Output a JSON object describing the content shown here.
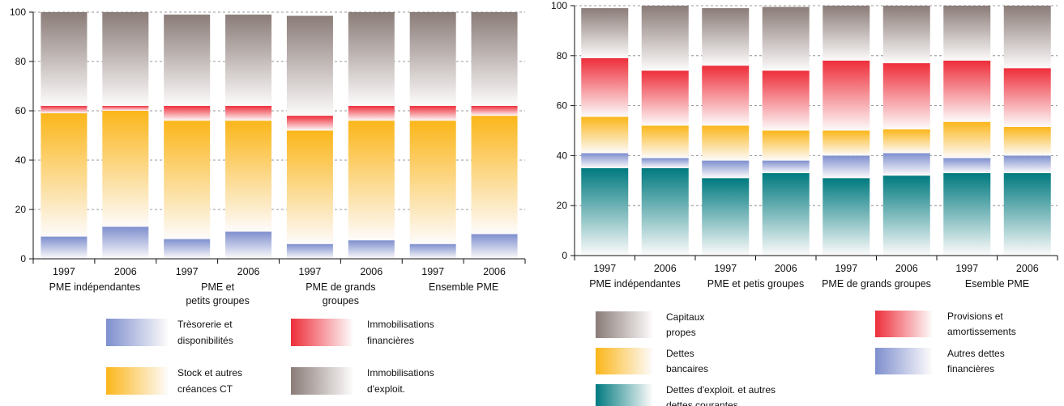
{
  "chart_data": [
    {
      "type": "bar",
      "stacked": true,
      "title": "",
      "xlabel": "",
      "ylabel": "",
      "ylim": [
        0,
        100
      ],
      "yticks": [
        0,
        20,
        40,
        60,
        80,
        100
      ],
      "grid": "horizontal dashed",
      "categories": [
        "1997",
        "2006",
        "1997",
        "2006",
        "1997",
        "2006",
        "1997",
        "2006"
      ],
      "groups": [
        {
          "label": [
            "PME indépendantes"
          ]
        },
        {
          "label": [
            "PME et",
            "petits groupes"
          ]
        },
        {
          "label": [
            "PME de grands",
            "groupes"
          ]
        },
        {
          "label": [
            "Ensemble PME"
          ]
        }
      ],
      "series": [
        {
          "name": "Trèsorerie et disponibilités",
          "color": "#7e8fce",
          "values": [
            9,
            13,
            8,
            11,
            6,
            7.5,
            6,
            10
          ]
        },
        {
          "name": "Stock et autres créances CT",
          "color": "#fbb61a",
          "values": [
            50,
            47,
            48,
            45,
            46,
            48.5,
            50,
            48
          ]
        },
        {
          "name": "Immobilisations financières",
          "color": "#ee2e3a",
          "values": [
            3,
            2,
            6,
            6,
            6,
            6,
            6,
            4
          ]
        },
        {
          "name": "Immobilisations d'exploit.",
          "color": "#8a7c78",
          "values": [
            38,
            38,
            37,
            37,
            40.5,
            38,
            38,
            38
          ]
        }
      ],
      "legend": [
        [
          "Trèsorerie et",
          "disponibilités"
        ],
        [
          "Immobilisations",
          "financières"
        ],
        [
          "Stock et autres",
          "créances CT"
        ],
        [
          "Immobilisations",
          "d'exploit."
        ]
      ]
    },
    {
      "type": "bar",
      "stacked": true,
      "title": "",
      "xlabel": "",
      "ylabel": "",
      "ylim": [
        0,
        100
      ],
      "yticks": [
        0,
        20,
        40,
        60,
        80,
        100
      ],
      "grid": "horizontal dashed",
      "categories": [
        "1997",
        "2006",
        "1997",
        "2006",
        "1997",
        "2006",
        "1997",
        "2006"
      ],
      "groups": [
        {
          "label": [
            "PME indépendantes"
          ]
        },
        {
          "label": [
            "PME et petis groupes"
          ]
        },
        {
          "label": [
            "PME de grands groupes"
          ]
        },
        {
          "label": [
            "Esemble PME"
          ]
        }
      ],
      "series": [
        {
          "name": "Dettes d'exploit. et autres dettes courantes",
          "color": "#007a7f",
          "values": [
            35,
            35,
            31,
            33,
            31,
            32,
            33,
            33
          ]
        },
        {
          "name": "Autres dettes financières",
          "color": "#7e8fce",
          "values": [
            6,
            4,
            7,
            5,
            9,
            9,
            6,
            7
          ]
        },
        {
          "name": "Dettes bancaires",
          "color": "#fbb61a",
          "values": [
            14.5,
            13,
            14,
            12,
            10,
            9.5,
            14.5,
            11.5
          ]
        },
        {
          "name": "Provisions et amortissements",
          "color": "#ee2e3a",
          "values": [
            23.5,
            22,
            24,
            24,
            28,
            26.5,
            24.5,
            23.5
          ]
        },
        {
          "name": "Capitaux propes",
          "color": "#8a7c78",
          "values": [
            20,
            26,
            23,
            25.5,
            22,
            23,
            22,
            25
          ]
        }
      ],
      "legend": [
        [
          "Capitaux",
          "propes"
        ],
        [
          "Provisions et",
          "amortissements"
        ],
        [
          "Dettes",
          "bancaires"
        ],
        [
          "Autres dettes",
          "financières"
        ],
        [
          "Dettes d'exploit. et autres",
          "dettes courantes"
        ]
      ]
    }
  ]
}
